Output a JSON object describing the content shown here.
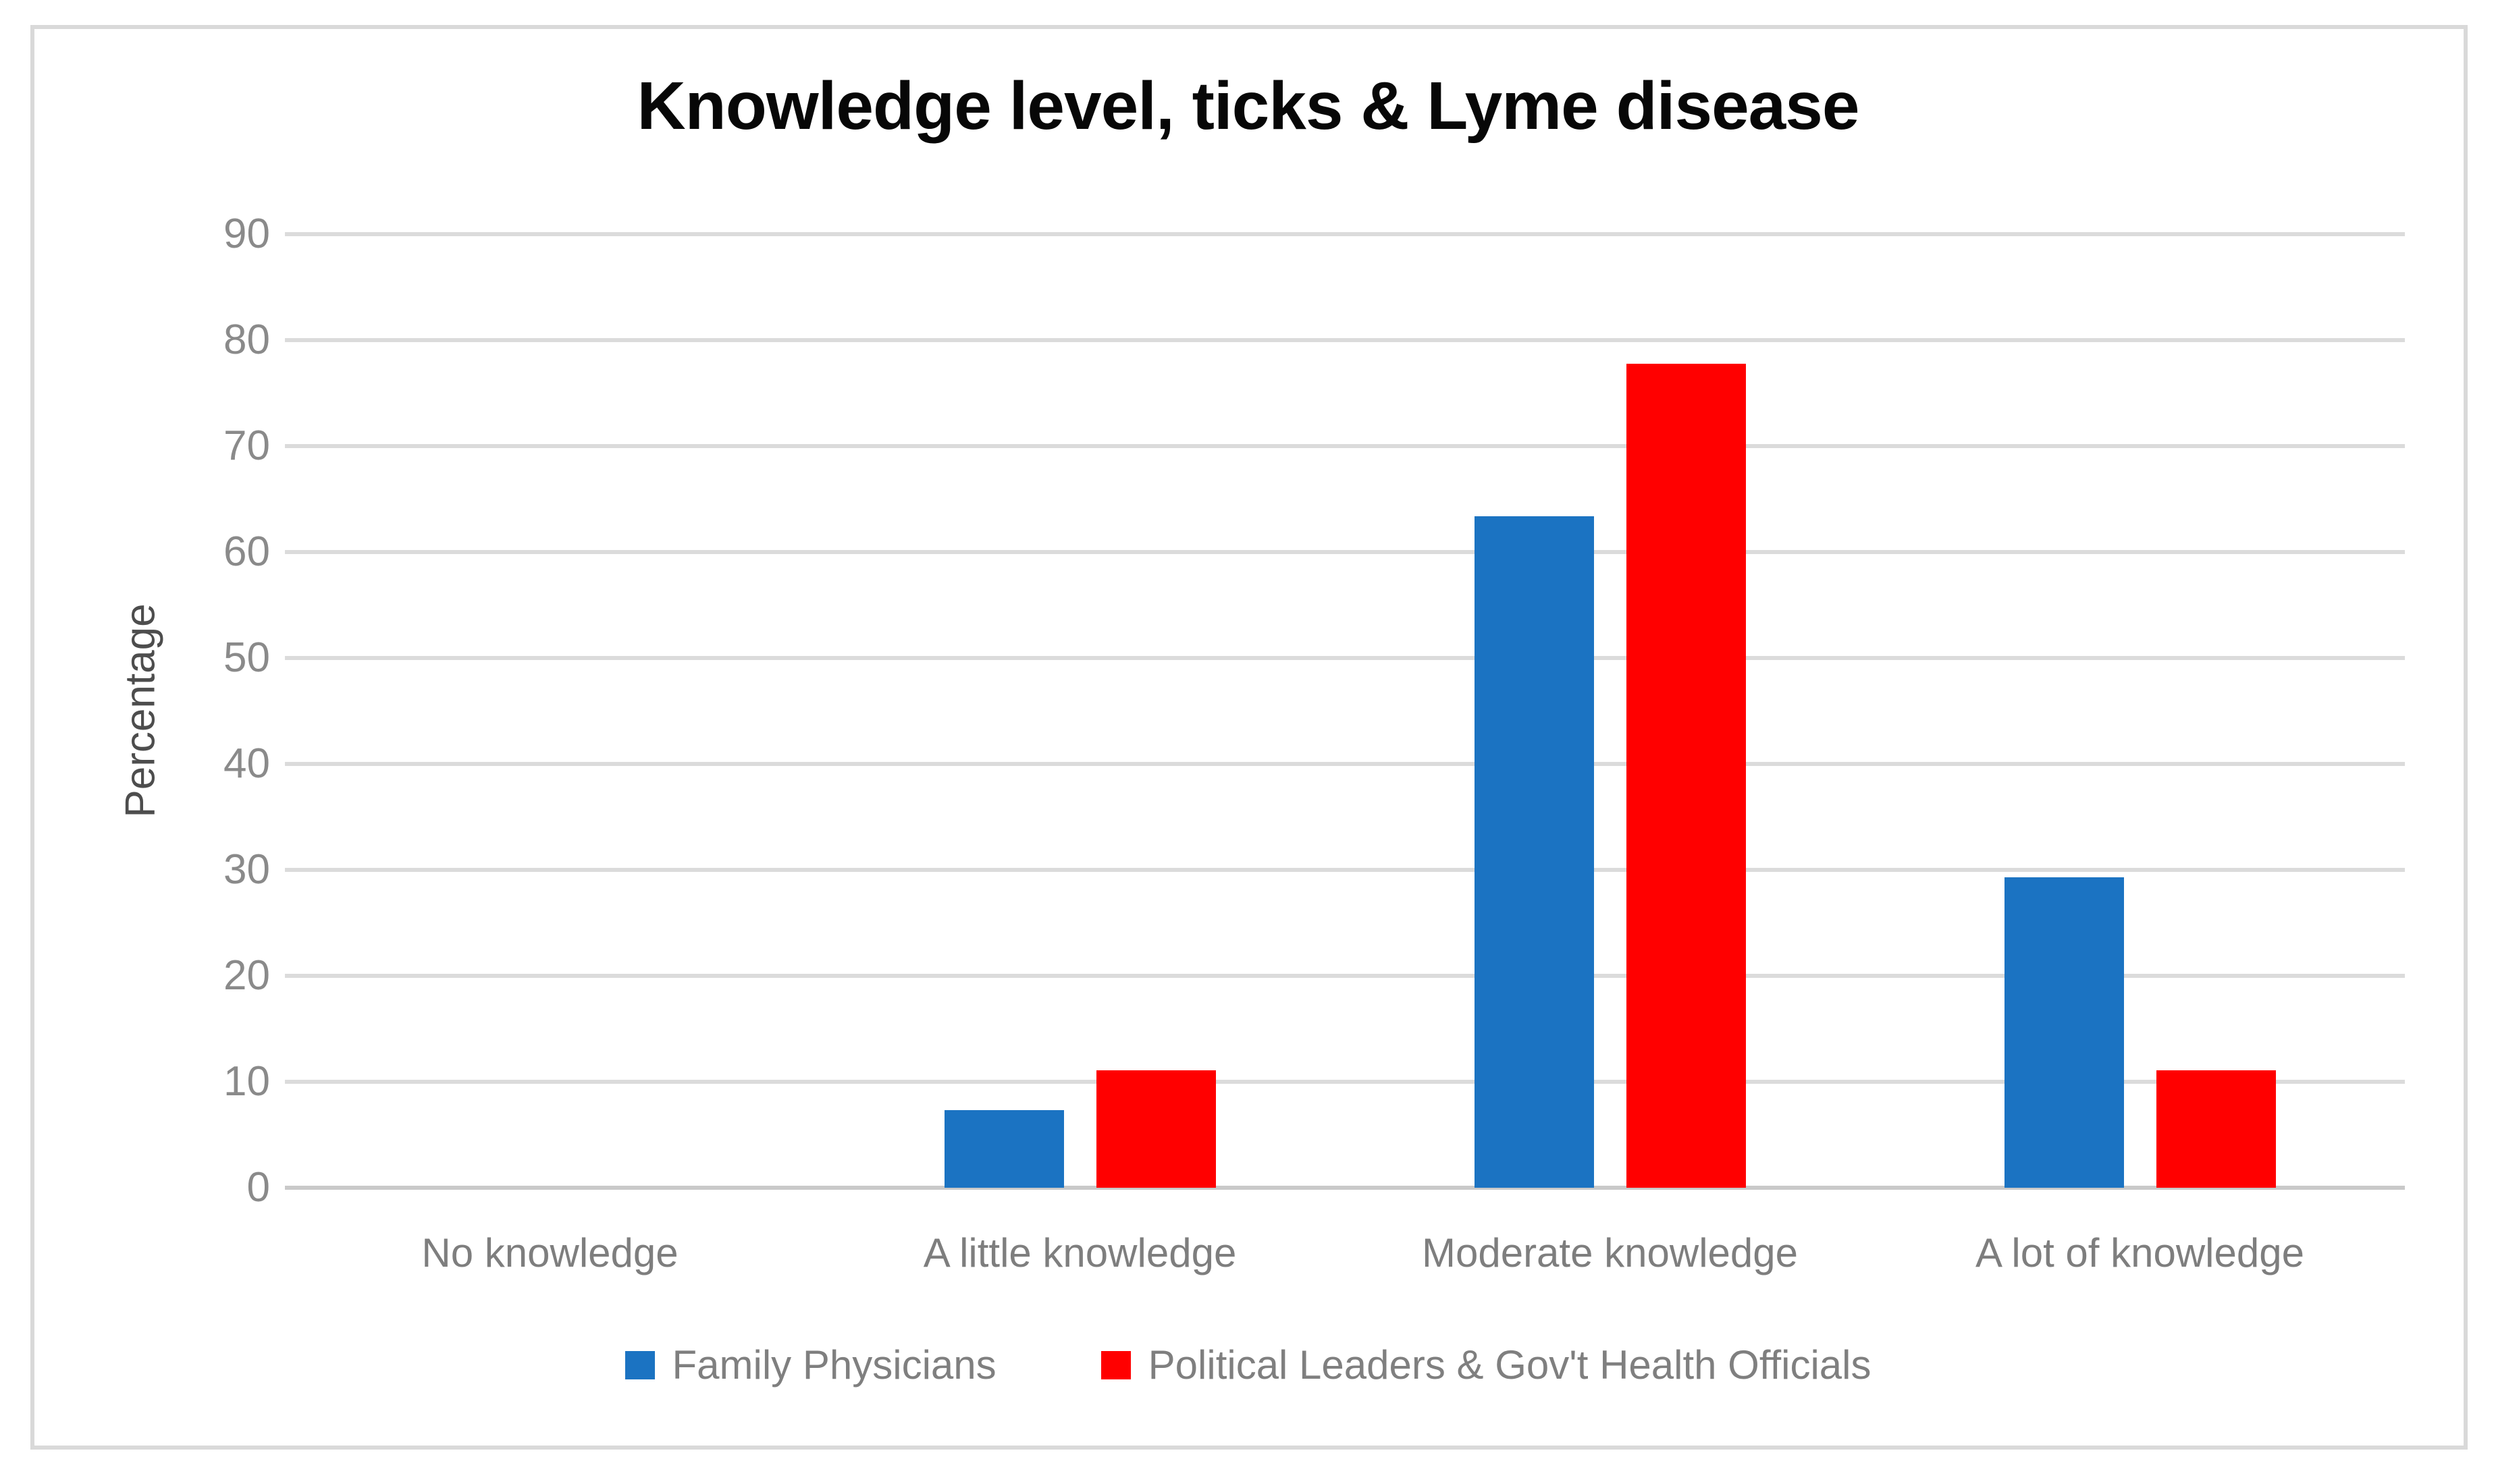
{
  "title": "Knowledge level, ticks & Lyme disease",
  "y_axis": {
    "label": "Percentage",
    "tick_labels": [
      "0",
      "10",
      "20",
      "30",
      "40",
      "50",
      "60",
      "70",
      "80",
      "90"
    ]
  },
  "colors": {
    "series_blue": "#1B73C2",
    "series_red": "#FF0000",
    "gridline": "#DBDBDB",
    "axis_line": "#C9C9C9",
    "tick_text": "#8A8A8A",
    "category_text": "#7E7E7E",
    "legend_text": "#7F7F7F",
    "title_text": "#070707",
    "frame_border": "#D9D9D9"
  },
  "chart_data": {
    "type": "bar",
    "categories": [
      "No knowledge",
      "A little knowledge",
      "Moderate knowledge",
      "A lot of knowledge"
    ],
    "series": [
      {
        "name": "Family Physicians",
        "color": "#1B73C2",
        "values": [
          0,
          7.3,
          63.4,
          29.3
        ]
      },
      {
        "name": "Political Leaders & Gov't Health Officials",
        "color": "#FF0000",
        "values": [
          0,
          11.1,
          77.8,
          11.1
        ]
      }
    ],
    "title": "Knowledge level, ticks & Lyme disease",
    "xlabel": "",
    "ylabel": "Percentage",
    "ylim": [
      0,
      90
    ],
    "ytick_step": 10,
    "grid": true,
    "legend_position": "bottom"
  }
}
